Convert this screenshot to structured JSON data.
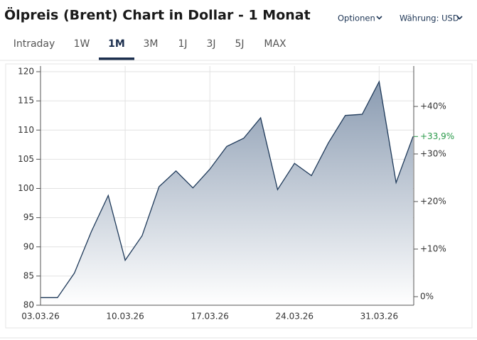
{
  "header": {
    "title": "Ölpreis (Brent) Chart in Dollar - 1 Monat",
    "options": "Optionen",
    "currency": "Währung: USD"
  },
  "tabs": {
    "items": [
      "Intraday",
      "1W",
      "1M",
      "3M",
      "1J",
      "3J",
      "5J",
      "MAX"
    ],
    "active": 2
  },
  "chart_data": {
    "type": "area",
    "categories": [
      "03.03.26",
      null,
      null,
      null,
      null,
      "10.03.26",
      null,
      null,
      null,
      null,
      "17.03.26",
      null,
      null,
      null,
      null,
      "24.03.26",
      null,
      null,
      null,
      null,
      "31.03.26",
      null,
      null
    ],
    "values": [
      81.3,
      81.3,
      85.5,
      92.6,
      98.8,
      87.7,
      91.9,
      100.3,
      103.0,
      100.1,
      103.3,
      107.2,
      108.6,
      112.1,
      99.8,
      104.3,
      102.2,
      107.8,
      112.5,
      112.7,
      118.3,
      101.0,
      108.9
    ],
    "color": "#1f3a5a",
    "ylim": [
      80,
      120
    ],
    "yticks": [
      80,
      85,
      90,
      95,
      100,
      105,
      110,
      115,
      120
    ],
    "y2lim": [
      -1.8,
      47.3
    ],
    "y2ticks": [
      {
        "value": 0,
        "label": "0%"
      },
      {
        "value": 10,
        "label": "+10%"
      },
      {
        "value": 20,
        "label": "+20%"
      },
      {
        "value": 30,
        "label": "+30%"
      },
      {
        "value": 40,
        "label": "+40%"
      }
    ],
    "annotation": "+33,9%",
    "grid": true
  }
}
